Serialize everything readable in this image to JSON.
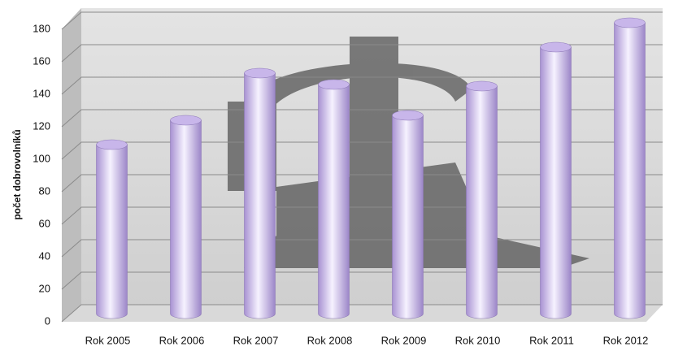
{
  "chart_data": {
    "type": "bar",
    "y_label": "počet dobrovolníků",
    "categories": [
      "Rok 2005",
      "Rok 2006",
      "Rok 2007",
      "Rok 2008",
      "Rok 2009",
      "Rok 2010",
      "Rok 2011",
      "Rok 2012"
    ],
    "values": [
      104,
      119,
      148,
      141,
      122,
      140,
      164,
      179
    ],
    "color": "#c8b6ea",
    "ylim": [
      0,
      180
    ],
    "yticks": [
      0,
      20,
      40,
      60,
      80,
      100,
      120,
      140,
      160,
      180
    ],
    "grid": true
  }
}
